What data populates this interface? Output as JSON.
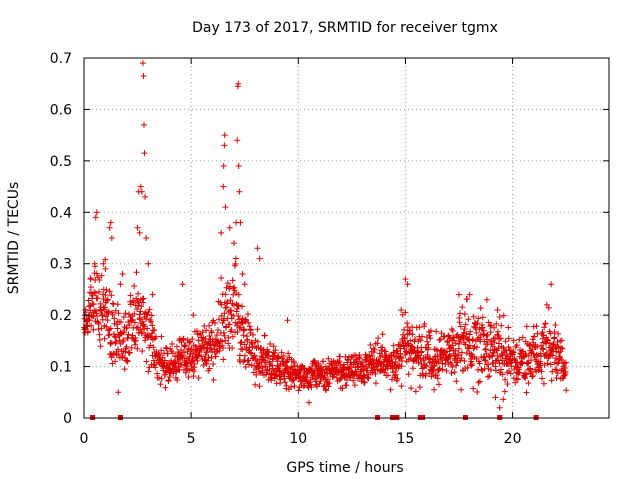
{
  "chart_data": {
    "type": "scatter",
    "title": "Day 173 of 2017, SRMTID for receiver tgmx",
    "xlabel": "GPS time / hours",
    "ylabel": "SRMTID / TECUs",
    "xlim": [
      0,
      24.5
    ],
    "ylim": [
      0,
      0.7
    ],
    "xticks": [
      0,
      5,
      10,
      15,
      20
    ],
    "xtick_labels": [
      "0",
      "5",
      "10",
      "15",
      "20"
    ],
    "yticks": [
      0,
      0.1,
      0.2,
      0.3,
      0.4,
      0.5,
      0.6,
      0.7
    ],
    "ytick_labels": [
      "0",
      "0.1",
      "0.2",
      "0.3",
      "0.4",
      "0.5",
      "0.6",
      "0.7"
    ],
    "grid": true,
    "marker": "+",
    "color": "#dd0000",
    "series": [
      {
        "name": "SRMTID",
        "envelope": [
          {
            "x": 0.0,
            "y": 0.18,
            "s": 0.02
          },
          {
            "x": 0.5,
            "y": 0.22,
            "s": 0.05
          },
          {
            "x": 1.0,
            "y": 0.2,
            "s": 0.06
          },
          {
            "x": 1.5,
            "y": 0.16,
            "s": 0.05
          },
          {
            "x": 2.0,
            "y": 0.15,
            "s": 0.05
          },
          {
            "x": 2.5,
            "y": 0.2,
            "s": 0.07
          },
          {
            "x": 3.0,
            "y": 0.16,
            "s": 0.06
          },
          {
            "x": 3.5,
            "y": 0.11,
            "s": 0.03
          },
          {
            "x": 4.0,
            "y": 0.1,
            "s": 0.025
          },
          {
            "x": 4.5,
            "y": 0.12,
            "s": 0.03
          },
          {
            "x": 5.0,
            "y": 0.12,
            "s": 0.03
          },
          {
            "x": 5.5,
            "y": 0.13,
            "s": 0.035
          },
          {
            "x": 6.0,
            "y": 0.14,
            "s": 0.04
          },
          {
            "x": 6.5,
            "y": 0.18,
            "s": 0.06
          },
          {
            "x": 7.0,
            "y": 0.22,
            "s": 0.07
          },
          {
            "x": 7.5,
            "y": 0.16,
            "s": 0.05
          },
          {
            "x": 8.0,
            "y": 0.12,
            "s": 0.035
          },
          {
            "x": 8.5,
            "y": 0.11,
            "s": 0.03
          },
          {
            "x": 9.0,
            "y": 0.1,
            "s": 0.025
          },
          {
            "x": 10.0,
            "y": 0.085,
            "s": 0.02
          },
          {
            "x": 11.0,
            "y": 0.085,
            "s": 0.02
          },
          {
            "x": 12.0,
            "y": 0.09,
            "s": 0.02
          },
          {
            "x": 13.0,
            "y": 0.1,
            "s": 0.025
          },
          {
            "x": 14.0,
            "y": 0.12,
            "s": 0.03
          },
          {
            "x": 14.5,
            "y": 0.1,
            "s": 0.025
          },
          {
            "x": 15.0,
            "y": 0.14,
            "s": 0.05
          },
          {
            "x": 15.5,
            "y": 0.13,
            "s": 0.04
          },
          {
            "x": 16.5,
            "y": 0.12,
            "s": 0.035
          },
          {
            "x": 17.5,
            "y": 0.14,
            "s": 0.045
          },
          {
            "x": 18.5,
            "y": 0.15,
            "s": 0.05
          },
          {
            "x": 19.5,
            "y": 0.12,
            "s": 0.045
          },
          {
            "x": 20.5,
            "y": 0.1,
            "s": 0.035
          },
          {
            "x": 21.5,
            "y": 0.14,
            "s": 0.05
          },
          {
            "x": 22.0,
            "y": 0.13,
            "s": 0.04
          },
          {
            "x": 22.5,
            "y": 0.09,
            "s": 0.025
          }
        ],
        "spikes": [
          {
            "x": 0.3,
            "y": 0.27
          },
          {
            "x": 0.5,
            "y": 0.3
          },
          {
            "x": 0.55,
            "y": 0.39
          },
          {
            "x": 0.6,
            "y": 0.4
          },
          {
            "x": 0.9,
            "y": 0.3
          },
          {
            "x": 1.0,
            "y": 0.29
          },
          {
            "x": 1.2,
            "y": 0.37
          },
          {
            "x": 1.25,
            "y": 0.38
          },
          {
            "x": 1.3,
            "y": 0.35
          },
          {
            "x": 1.7,
            "y": 0.26
          },
          {
            "x": 1.8,
            "y": 0.28
          },
          {
            "x": 2.5,
            "y": 0.37
          },
          {
            "x": 2.55,
            "y": 0.44
          },
          {
            "x": 2.6,
            "y": 0.36
          },
          {
            "x": 2.65,
            "y": 0.45
          },
          {
            "x": 2.7,
            "y": 0.44
          },
          {
            "x": 2.75,
            "y": 0.69
          },
          {
            "x": 2.78,
            "y": 0.665
          },
          {
            "x": 2.8,
            "y": 0.57
          },
          {
            "x": 2.82,
            "y": 0.515
          },
          {
            "x": 2.85,
            "y": 0.43
          },
          {
            "x": 2.9,
            "y": 0.35
          },
          {
            "x": 3.0,
            "y": 0.3
          },
          {
            "x": 3.2,
            "y": 0.24
          },
          {
            "x": 4.6,
            "y": 0.26
          },
          {
            "x": 5.1,
            "y": 0.2
          },
          {
            "x": 6.4,
            "y": 0.36
          },
          {
            "x": 6.5,
            "y": 0.45
          },
          {
            "x": 6.52,
            "y": 0.49
          },
          {
            "x": 6.55,
            "y": 0.53
          },
          {
            "x": 6.57,
            "y": 0.55
          },
          {
            "x": 6.6,
            "y": 0.41
          },
          {
            "x": 6.8,
            "y": 0.37
          },
          {
            "x": 7.0,
            "y": 0.34
          },
          {
            "x": 7.1,
            "y": 0.38
          },
          {
            "x": 7.15,
            "y": 0.54
          },
          {
            "x": 7.18,
            "y": 0.645
          },
          {
            "x": 7.2,
            "y": 0.65
          },
          {
            "x": 7.22,
            "y": 0.49
          },
          {
            "x": 7.25,
            "y": 0.44
          },
          {
            "x": 7.3,
            "y": 0.38
          },
          {
            "x": 7.4,
            "y": 0.28
          },
          {
            "x": 7.5,
            "y": 0.26
          },
          {
            "x": 8.1,
            "y": 0.33
          },
          {
            "x": 8.2,
            "y": 0.31
          },
          {
            "x": 9.5,
            "y": 0.19
          },
          {
            "x": 15.0,
            "y": 0.27
          },
          {
            "x": 15.1,
            "y": 0.26
          },
          {
            "x": 14.8,
            "y": 0.21
          },
          {
            "x": 17.5,
            "y": 0.24
          },
          {
            "x": 18.0,
            "y": 0.24
          },
          {
            "x": 18.8,
            "y": 0.23
          },
          {
            "x": 19.3,
            "y": 0.21
          },
          {
            "x": 21.8,
            "y": 0.26
          },
          {
            "x": 21.6,
            "y": 0.22
          },
          {
            "x": 19.4,
            "y": 0.02
          },
          {
            "x": 19.2,
            "y": 0.04
          },
          {
            "x": 10.5,
            "y": 0.03
          },
          {
            "x": 1.6,
            "y": 0.05
          },
          {
            "x": 19.0,
            "y": 0.18
          }
        ]
      },
      {
        "name": "zero-value markers",
        "marker": "square",
        "x": [
          0.4,
          1.7,
          13.7,
          14.4,
          14.6,
          15.7,
          15.8,
          17.8,
          19.4,
          21.1
        ],
        "y": [
          0,
          0,
          0,
          0,
          0,
          0,
          0,
          0,
          0,
          0
        ]
      }
    ]
  }
}
